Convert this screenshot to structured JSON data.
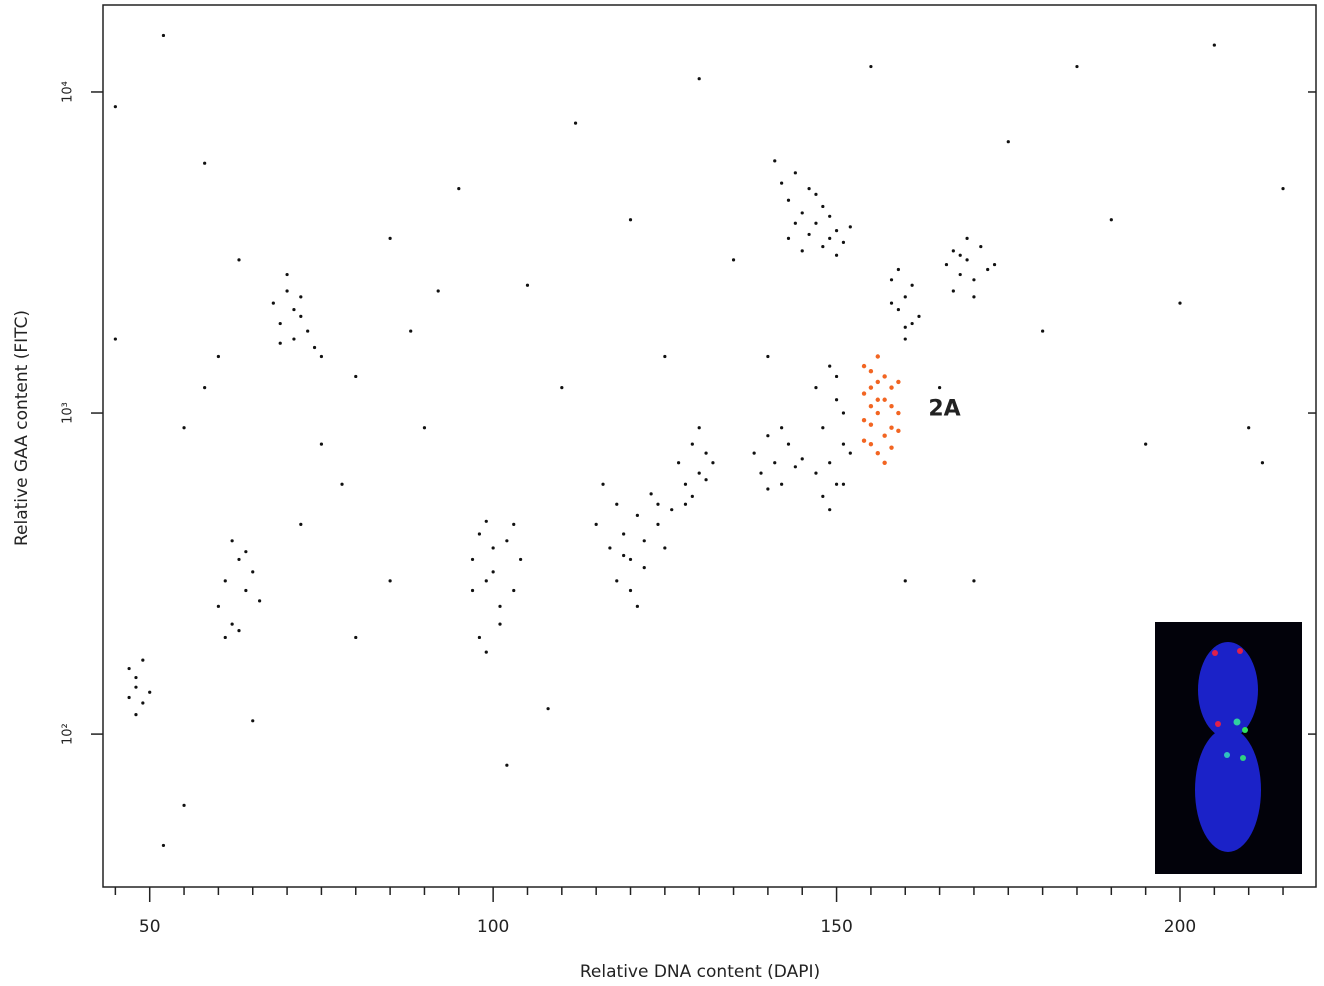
{
  "chart_data": {
    "type": "scatter",
    "x_label": "Relative DNA content  (DAPI)",
    "y_label": "Relative GAA content  (FITC)",
    "xlim": [
      43.2,
      219.8
    ],
    "ylim": [
      33.4,
      18660
    ],
    "log_y": true,
    "xticks": [
      50,
      100,
      150,
      200
    ],
    "xminorticks": [
      45,
      55,
      60,
      65,
      70,
      75,
      80,
      85,
      90,
      95,
      105,
      110,
      115,
      120,
      125,
      130,
      135,
      140,
      145,
      155,
      160,
      165,
      170,
      175,
      180,
      185,
      190,
      195,
      205,
      210,
      215
    ],
    "yticks": [
      {
        "value": 100,
        "label": "10²"
      },
      {
        "value": 1000,
        "label": "10³"
      },
      {
        "value": 10000,
        "label": "10⁴"
      }
    ],
    "series": [
      {
        "color": "#111111",
        "x": [
          142,
          143,
          144,
          145,
          146,
          147,
          148,
          149,
          150,
          151,
          141,
          143,
          146,
          148,
          150,
          144,
          152,
          145,
          147,
          149,
          158,
          159,
          160,
          161,
          159,
          160,
          162,
          158,
          161,
          160,
          166,
          167,
          168,
          169,
          170,
          171,
          172,
          167,
          169,
          173,
          168,
          170,
          147,
          148,
          149,
          150,
          151,
          149,
          150,
          148,
          151,
          152,
          147,
          150,
          149,
          151,
          138,
          139,
          140,
          141,
          142,
          143,
          144,
          140,
          142,
          145,
          127,
          128,
          129,
          130,
          131,
          129,
          130,
          128,
          131,
          132,
          115,
          117,
          118,
          119,
          120,
          121,
          122,
          123,
          124,
          125,
          126,
          118,
          120,
          122,
          116,
          121,
          124,
          119,
          97,
          98,
          99,
          100,
          101,
          98,
          99,
          100,
          102,
          103,
          104,
          99,
          101,
          97,
          103,
          68,
          69,
          70,
          71,
          72,
          73,
          74,
          70,
          72,
          71,
          75,
          69,
          60,
          61,
          62,
          63,
          64,
          65,
          62,
          63,
          64,
          61,
          66,
          47,
          48,
          49,
          47,
          48,
          49,
          48,
          50,
          45,
          52,
          58,
          63,
          55,
          60,
          75,
          80,
          85,
          90,
          88,
          95,
          105,
          110,
          112,
          120,
          125,
          130,
          135,
          140,
          155,
          165,
          175,
          180,
          185,
          190,
          195,
          200,
          205,
          210,
          215,
          212,
          160,
          170,
          108,
          102,
          55,
          52,
          65,
          78,
          85,
          45,
          92,
          58,
          72,
          80
        ],
        "values": [
          5200,
          4600,
          3900,
          4200,
          3600,
          4800,
          3300,
          4100,
          3700,
          3400,
          6100,
          3500,
          5000,
          4400,
          3100,
          5600,
          3800,
          3200,
          3900,
          3500,
          2600,
          2100,
          2300,
          1900,
          2800,
          1700,
          2000,
          2200,
          2500,
          1850,
          2900,
          3200,
          2700,
          3000,
          2600,
          3300,
          2800,
          2400,
          3500,
          2900,
          3100,
          2300,
          1200,
          900,
          700,
          1100,
          800,
          1400,
          600,
          550,
          1000,
          750,
          650,
          1300,
          500,
          600,
          750,
          650,
          850,
          700,
          600,
          800,
          680,
          580,
          900,
          720,
          700,
          600,
          800,
          650,
          750,
          550,
          900,
          520,
          620,
          700,
          450,
          380,
          520,
          420,
          350,
          480,
          400,
          560,
          450,
          380,
          500,
          300,
          280,
          330,
          600,
          250,
          520,
          360,
          350,
          420,
          300,
          380,
          250,
          200,
          460,
          320,
          400,
          280,
          350,
          180,
          220,
          280,
          450,
          2200,
          1900,
          2400,
          1700,
          2000,
          1800,
          1600,
          2700,
          2300,
          2100,
          1500,
          1650,
          250,
          300,
          220,
          350,
          280,
          320,
          400,
          210,
          370,
          200,
          260,
          130,
          150,
          125,
          160,
          140,
          170,
          115,
          135,
          9000,
          15000,
          6000,
          3000,
          900,
          1500,
          800,
          1300,
          3500,
          900,
          1800,
          5000,
          2500,
          1200,
          8000,
          4000,
          1500,
          11000,
          3000,
          1500,
          12000,
          1200,
          7000,
          1800,
          12000,
          4000,
          800,
          2200,
          14000,
          900,
          5000,
          700,
          300,
          300,
          120,
          80,
          60,
          45,
          110,
          600,
          300,
          1700,
          2400,
          1200,
          450,
          200
        ]
      },
      {
        "name": "2A",
        "color": "#f26522",
        "x": [
          154,
          155,
          156,
          157,
          158,
          155,
          156,
          157,
          154,
          158,
          159,
          155,
          156,
          157,
          154,
          159,
          158,
          156,
          155,
          157,
          154,
          159,
          156,
          155,
          158
        ],
        "values": [
          1400,
          1200,
          1000,
          1300,
          900,
          800,
          1500,
          1100,
          950,
          1200,
          1000,
          1050,
          750,
          850,
          1150,
          1250,
          780,
          1250,
          920,
          700,
          820,
          880,
          1100,
          1350,
          1050
        ]
      }
    ]
  }
}
